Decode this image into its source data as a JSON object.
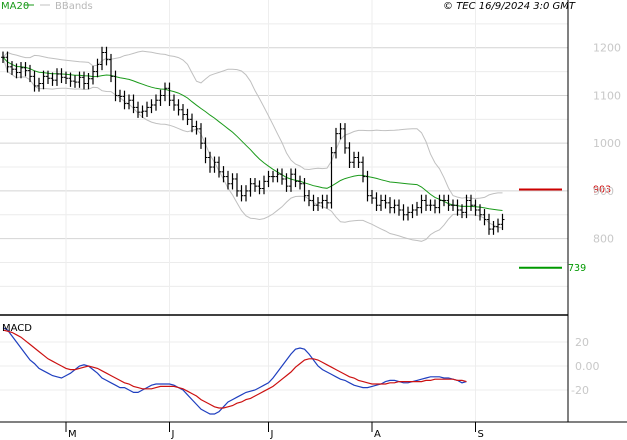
{
  "header": {
    "ma_label": "MA20",
    "bb_label": "BBands",
    "copyright": "© TEC 16/9/2024 3:0 GMT"
  },
  "colors": {
    "price": "#000000",
    "ma20": "#1a9a1a",
    "bbands": "#c0c0c0",
    "grid": "#d4d4d4",
    "resistance": "#cc0000",
    "support": "#009900",
    "macd": "#1f3fbf",
    "signal": "#cc1111",
    "frame": "#000000"
  },
  "chart_data": [
    {
      "type": "ohlc",
      "title": "",
      "ylim": [
        640,
        1300
      ],
      "y_ticks": [
        {
          "value": 1200,
          "label": "1200"
        },
        {
          "value": 1100,
          "label": "1100"
        },
        {
          "value": 1000,
          "label": "1000"
        },
        {
          "value": 900,
          "label": "900"
        },
        {
          "value": 800,
          "label": "800"
        }
      ],
      "x_ticks": [
        {
          "index": 14,
          "label": "M"
        },
        {
          "index": 37,
          "label": "J"
        },
        {
          "index": 59,
          "label": "J"
        },
        {
          "index": 82,
          "label": "A"
        },
        {
          "index": 105,
          "label": "S"
        }
      ],
      "levels": [
        {
          "name": "resistance",
          "value": 903,
          "label": "903"
        },
        {
          "name": "support",
          "value": 739,
          "label": "739"
        }
      ],
      "close": [
        1180,
        1160,
        1155,
        1148,
        1158,
        1152,
        1140,
        1120,
        1125,
        1140,
        1136,
        1132,
        1145,
        1138,
        1136,
        1130,
        1128,
        1138,
        1125,
        1135,
        1150,
        1165,
        1190,
        1175,
        1140,
        1100,
        1098,
        1083,
        1090,
        1075,
        1065,
        1067,
        1075,
        1080,
        1090,
        1100,
        1115,
        1090,
        1080,
        1070,
        1060,
        1050,
        1035,
        1030,
        1000,
        970,
        950,
        960,
        940,
        930,
        915,
        925,
        900,
        890,
        900,
        915,
        910,
        905,
        920,
        930,
        930,
        935,
        925,
        910,
        935,
        920,
        915,
        890,
        880,
        870,
        875,
        880,
        875,
        980,
        1020,
        1030,
        990,
        960,
        970,
        960,
        930,
        890,
        885,
        870,
        880,
        875,
        865,
        870,
        860,
        850,
        855,
        860,
        865,
        880,
        870,
        870,
        865,
        880,
        880,
        870,
        870,
        860,
        855,
        880,
        870,
        860,
        850,
        840,
        820,
        825,
        830,
        840
      ]
    },
    {
      "type": "line",
      "title": "MACD",
      "ylim": [
        -45,
        40
      ],
      "y_ticks": [
        {
          "value": 20,
          "label": "20"
        },
        {
          "value": 0,
          "label": "0.00"
        },
        {
          "value": -20,
          "label": "-20"
        }
      ],
      "series": [
        {
          "name": "MACD",
          "values": [
            32,
            30,
            25,
            20,
            15,
            10,
            5,
            2,
            -2,
            -4,
            -6,
            -8,
            -9,
            -10,
            -8,
            -6,
            -3,
            0,
            1,
            0,
            -3,
            -6,
            -10,
            -12,
            -14,
            -16,
            -18,
            -18,
            -20,
            -22,
            -22,
            -20,
            -18,
            -16,
            -15,
            -15,
            -15,
            -15,
            -16,
            -18,
            -20,
            -24,
            -28,
            -32,
            -36,
            -38,
            -40,
            -40,
            -38,
            -34,
            -30,
            -28,
            -26,
            -24,
            -22,
            -21,
            -20,
            -18,
            -16,
            -14,
            -10,
            -5,
            0,
            5,
            10,
            14,
            15,
            14,
            10,
            5,
            0,
            -3,
            -5,
            -7,
            -9,
            -11,
            -12,
            -14,
            -16,
            -17,
            -18,
            -18,
            -17,
            -16,
            -15,
            -13,
            -12,
            -12,
            -13,
            -14,
            -14,
            -13,
            -12,
            -11,
            -10,
            -9,
            -9,
            -9,
            -10,
            -10,
            -11,
            -12,
            -14,
            -13
          ]
        },
        {
          "name": "Signal",
          "values": [
            30,
            29,
            28,
            26,
            24,
            21,
            18,
            15,
            12,
            9,
            6,
            4,
            2,
            0,
            -2,
            -3,
            -3,
            -2,
            -1,
            0,
            -1,
            -2,
            -4,
            -6,
            -8,
            -10,
            -12,
            -14,
            -15,
            -17,
            -18,
            -19,
            -19,
            -19,
            -18,
            -17,
            -17,
            -17,
            -17,
            -18,
            -19,
            -21,
            -23,
            -25,
            -28,
            -30,
            -32,
            -34,
            -35,
            -35,
            -34,
            -33,
            -31,
            -30,
            -28,
            -27,
            -25,
            -23,
            -21,
            -19,
            -17,
            -14,
            -11,
            -8,
            -5,
            -1,
            2,
            5,
            6,
            6,
            5,
            3,
            1,
            -1,
            -3,
            -5,
            -7,
            -9,
            -10,
            -12,
            -13,
            -14,
            -15,
            -15,
            -15,
            -15,
            -14,
            -14,
            -13,
            -13,
            -13,
            -13,
            -13,
            -13,
            -12,
            -12,
            -11,
            -11,
            -11,
            -11,
            -11,
            -12,
            -12,
            -13
          ]
        }
      ]
    }
  ]
}
